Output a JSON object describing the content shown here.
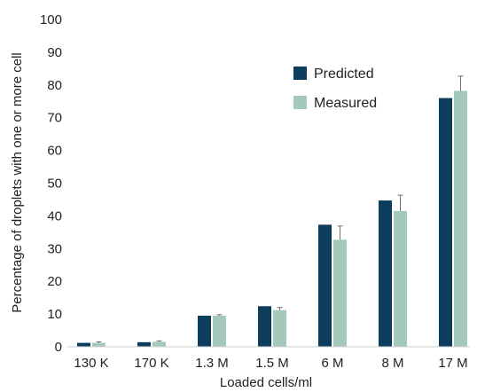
{
  "chart_data": {
    "type": "bar",
    "title": "",
    "xlabel": "Loaded cells/ml",
    "ylabel": "Percentage of droplets with one or more cell",
    "categories": [
      "130 K",
      "170 K",
      "1.3 M",
      "1.5 M",
      "6 M",
      "8 M",
      "17 M"
    ],
    "ylim": [
      0,
      100
    ],
    "yticks": [
      0,
      10,
      20,
      30,
      40,
      50,
      60,
      70,
      80,
      90,
      100
    ],
    "grid": false,
    "legend_position": "upper-right",
    "series": [
      {
        "name": "Predicted",
        "color": "#0d3d5c",
        "values": [
          1.2,
          1.4,
          9.5,
          12.4,
          37.3,
          44.7,
          76.0
        ]
      },
      {
        "name": "Measured",
        "color": "#a3c9bc",
        "values": [
          1.2,
          1.5,
          9.5,
          11.2,
          32.7,
          41.5,
          78.2
        ],
        "errors": [
          0.3,
          0.3,
          0.3,
          0.8,
          4.2,
          4.8,
          4.5
        ]
      }
    ]
  }
}
